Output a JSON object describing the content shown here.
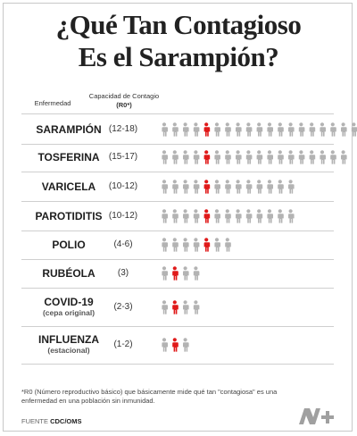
{
  "title": [
    "¿Qué Tan Contagioso",
    "Es el Sarampión?"
  ],
  "header": {
    "disease": "Enfermedad",
    "capacity_line1": "Capacidad de Contagio",
    "capacity_line2": "(R0*)"
  },
  "colors": {
    "highlight": "#e01a1a",
    "neutral": "#b3b3b3",
    "text": "#1e1e1e"
  },
  "icon": "person-icon",
  "chart_data": {
    "type": "table",
    "columns": [
      "Enfermedad",
      "Capacidad de Contagio (R0*)"
    ],
    "rows": [
      {
        "name": "SARAMPIÓN",
        "sub": "",
        "range": "(12-18)",
        "min": 12,
        "max": 18
      },
      {
        "name": "TOSFERINA",
        "sub": "",
        "range": "(15-17)",
        "min": 15,
        "max": 17
      },
      {
        "name": "VARICELA",
        "sub": "",
        "range": "(10-12)",
        "min": 10,
        "max": 12
      },
      {
        "name": "PAROTIDITIS",
        "sub": "",
        "range": "(10-12)",
        "min": 10,
        "max": 12
      },
      {
        "name": "POLIO",
        "sub": "",
        "range": "(4-6)",
        "min": 4,
        "max": 6
      },
      {
        "name": "RUBÉOLA",
        "sub": "",
        "range": "(3)",
        "min": 3,
        "max": 3
      },
      {
        "name": "COVID-19",
        "sub": "(cepa original)",
        "range": "(2-3)",
        "min": 2,
        "max": 3
      },
      {
        "name": "INFLUENZA",
        "sub": "(estacional)",
        "range": "(1-2)",
        "min": 1,
        "max": 2
      }
    ]
  },
  "footnote": "*R0 (Número reproductivo básico) que básicamente mide qué tan \"contagiosa\" es una enfermedad en una población sin inmunidad.",
  "source_label": "FUENTE",
  "source_value": "CDC/OMS",
  "logo": "N+"
}
